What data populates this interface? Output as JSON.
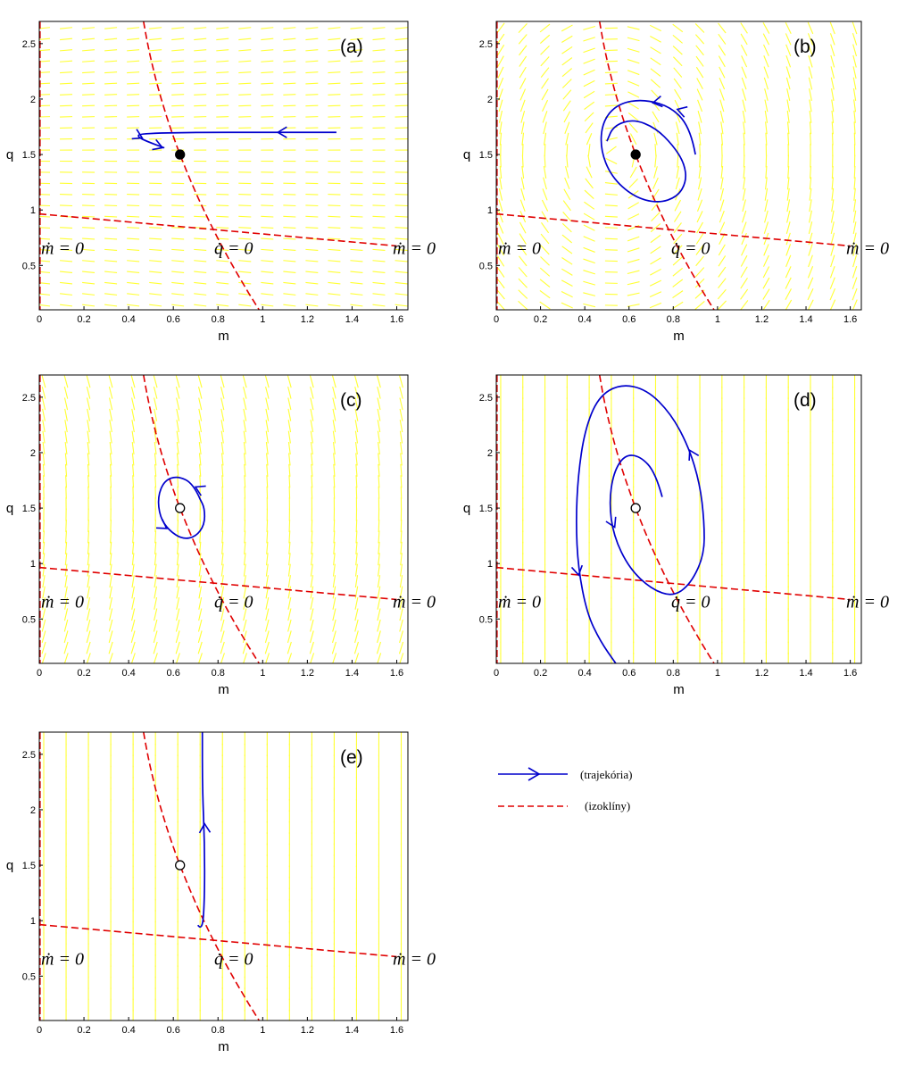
{
  "chart_data": [
    {
      "type": "line",
      "panel_label": "(a)",
      "xlabel": "m",
      "ylabel": "q",
      "xlim": [
        0,
        1.65
      ],
      "ylim": [
        0.1,
        2.7
      ],
      "xticks": [
        "0",
        "0.2",
        "0.4",
        "0.6",
        "0.8",
        "1",
        "1.2",
        "1.4",
        "1.6"
      ],
      "yticks": [
        "0.5",
        "1",
        "1.5",
        "2",
        "2.5"
      ],
      "field": "horizontal",
      "equilibrium": {
        "m": 0.63,
        "q": 1.5,
        "filled": true
      },
      "annotations": [
        {
          "text": "ṁ = 0",
          "m": 0.0,
          "q": 0.65
        },
        {
          "text": "q̇ = 0",
          "m": 0.78,
          "q": 0.65
        },
        {
          "text": "ṁ = 0",
          "m": 1.58,
          "q": 0.65
        }
      ],
      "trajectories": [
        {
          "points": [
            [
              1.33,
              1.7
            ],
            [
              1.0,
              1.7
            ],
            [
              0.7,
              1.7
            ],
            [
              0.45,
              1.69
            ],
            [
              0.44,
              1.66
            ],
            [
              0.48,
              1.62
            ],
            [
              0.56,
              1.56
            ]
          ],
          "arrows": [
            [
              1.08,
              1.7
            ],
            [
              0.45,
              1.66
            ],
            [
              0.54,
              1.57
            ]
          ]
        }
      ]
    },
    {
      "type": "line",
      "panel_label": "(b)",
      "xlabel": "m",
      "ylabel": "q",
      "xlim": [
        0,
        1.65
      ],
      "ylim": [
        0.1,
        2.7
      ],
      "xticks": [
        "0",
        "0.2",
        "0.4",
        "0.6",
        "0.8",
        "1",
        "1.2",
        "1.4",
        "1.6"
      ],
      "yticks": [
        "0.5",
        "1",
        "1.5",
        "2",
        "2.5"
      ],
      "field": "rotational",
      "equilibrium": {
        "m": 0.63,
        "q": 1.5,
        "filled": true
      },
      "annotations": [
        {
          "text": "ṁ = 0",
          "m": 0.0,
          "q": 0.65
        },
        {
          "text": "q̇ = 0",
          "m": 0.78,
          "q": 0.65
        },
        {
          "text": "ṁ = 0",
          "m": 1.58,
          "q": 0.65
        }
      ],
      "trajectories": [
        {
          "points": [
            [
              0.9,
              1.5
            ],
            [
              0.88,
              1.72
            ],
            [
              0.8,
              1.92
            ],
            [
              0.67,
              2.0
            ],
            [
              0.55,
              1.96
            ],
            [
              0.48,
              1.8
            ],
            [
              0.47,
              1.55
            ],
            [
              0.52,
              1.3
            ],
            [
              0.62,
              1.12
            ],
            [
              0.73,
              1.06
            ],
            [
              0.82,
              1.12
            ],
            [
              0.86,
              1.26
            ],
            [
              0.85,
              1.42
            ],
            [
              0.8,
              1.58
            ],
            [
              0.72,
              1.74
            ],
            [
              0.62,
              1.82
            ],
            [
              0.53,
              1.76
            ],
            [
              0.5,
              1.62
            ]
          ],
          "arrows": [
            [
              0.83,
              1.9
            ],
            [
              0.72,
              1.97
            ]
          ]
        }
      ]
    },
    {
      "type": "line",
      "panel_label": "(c)",
      "xlabel": "m",
      "ylabel": "q",
      "xlim": [
        0,
        1.65
      ],
      "ylim": [
        0.1,
        2.7
      ],
      "xticks": [
        "0",
        "0.2",
        "0.4",
        "0.6",
        "0.8",
        "1",
        "1.2",
        "1.4",
        "1.6"
      ],
      "yticks": [
        "0.5",
        "1",
        "1.5",
        "2",
        "2.5"
      ],
      "field": "vertical-curved",
      "equilibrium": {
        "m": 0.63,
        "q": 1.5,
        "filled": false
      },
      "annotations": [
        {
          "text": "ṁ = 0",
          "m": 0.0,
          "q": 0.65
        },
        {
          "text": "q̇ = 0",
          "m": 0.78,
          "q": 0.65
        },
        {
          "text": "ṁ = 0",
          "m": 1.58,
          "q": 0.65
        }
      ],
      "trajectories": [
        {
          "points": [
            [
              0.72,
              1.58
            ],
            [
              0.69,
              1.72
            ],
            [
              0.62,
              1.79
            ],
            [
              0.56,
              1.75
            ],
            [
              0.53,
              1.6
            ],
            [
              0.54,
              1.42
            ],
            [
              0.58,
              1.3
            ],
            [
              0.64,
              1.22
            ],
            [
              0.7,
              1.24
            ],
            [
              0.74,
              1.35
            ],
            [
              0.74,
              1.5
            ],
            [
              0.72,
              1.58
            ]
          ],
          "arrows": [
            [
              0.71,
              1.68
            ],
            [
              0.56,
              1.33
            ]
          ]
        }
      ]
    },
    {
      "type": "line",
      "panel_label": "(d)",
      "xlabel": "m",
      "ylabel": "q",
      "xlim": [
        0,
        1.65
      ],
      "ylim": [
        0.1,
        2.7
      ],
      "xticks": [
        "0",
        "0.2",
        "0.4",
        "0.6",
        "0.8",
        "1",
        "1.2",
        "1.4",
        "1.6"
      ],
      "yticks": [
        "0.5",
        "1",
        "1.5",
        "2",
        "2.5"
      ],
      "field": "vertical",
      "equilibrium": {
        "m": 0.63,
        "q": 1.5,
        "filled": false
      },
      "annotations": [
        {
          "text": "ṁ = 0",
          "m": 0.0,
          "q": 0.65
        },
        {
          "text": "q̇ = 0",
          "m": 0.78,
          "q": 0.65
        },
        {
          "text": "ṁ = 0",
          "m": 1.58,
          "q": 0.65
        }
      ],
      "trajectories": [
        {
          "points": [
            [
              0.75,
              1.6
            ],
            [
              0.72,
              1.82
            ],
            [
              0.65,
              1.97
            ],
            [
              0.58,
              1.98
            ],
            [
              0.53,
              1.82
            ],
            [
              0.51,
              1.55
            ],
            [
              0.53,
              1.25
            ],
            [
              0.6,
              0.96
            ],
            [
              0.7,
              0.77
            ],
            [
              0.8,
              0.7
            ],
            [
              0.88,
              0.82
            ],
            [
              0.94,
              1.08
            ],
            [
              0.94,
              1.38
            ],
            [
              0.92,
              1.72
            ],
            [
              0.87,
              2.05
            ],
            [
              0.79,
              2.35
            ],
            [
              0.68,
              2.57
            ],
            [
              0.56,
              2.62
            ],
            [
              0.46,
              2.5
            ],
            [
              0.4,
              2.2
            ],
            [
              0.37,
              1.8
            ],
            [
              0.36,
              1.38
            ],
            [
              0.37,
              0.96
            ],
            [
              0.41,
              0.55
            ],
            [
              0.47,
              0.3
            ],
            [
              0.54,
              0.1
            ]
          ],
          "arrows": [
            [
              0.53,
              1.35
            ],
            [
              0.88,
              2.0
            ],
            [
              0.37,
              0.92
            ]
          ]
        }
      ]
    },
    {
      "type": "line",
      "panel_label": "(e)",
      "xlabel": "m",
      "ylabel": "q",
      "xlim": [
        0,
        1.65
      ],
      "ylim": [
        0.1,
        2.7
      ],
      "xticks": [
        "0",
        "0.2",
        "0.4",
        "0.6",
        "0.8",
        "1",
        "1.2",
        "1.4",
        "1.6"
      ],
      "yticks": [
        "0.5",
        "1",
        "1.5",
        "2",
        "2.5"
      ],
      "field": "vertical",
      "equilibrium": {
        "m": 0.63,
        "q": 1.5,
        "filled": false
      },
      "annotations": [
        {
          "text": "ṁ = 0",
          "m": 0.0,
          "q": 0.65
        },
        {
          "text": "q̇ = 0",
          "m": 0.78,
          "q": 0.65
        },
        {
          "text": "ṁ = 0",
          "m": 1.58,
          "q": 0.65
        }
      ],
      "trajectories": [
        {
          "points": [
            [
              0.71,
              0.96
            ],
            [
              0.73,
              0.9
            ],
            [
              0.74,
              1.2
            ],
            [
              0.74,
              1.7
            ],
            [
              0.73,
              2.2
            ],
            [
              0.73,
              2.7
            ]
          ],
          "arrows": [
            [
              0.74,
              1.85
            ]
          ]
        }
      ]
    }
  ],
  "legend": {
    "trajectory_label": "(trajekória)",
    "isocline_label": "(izoklíny)",
    "trajectory_color": "#0000cc",
    "isocline_color": "#e00000",
    "field_color": "#ffff33"
  }
}
